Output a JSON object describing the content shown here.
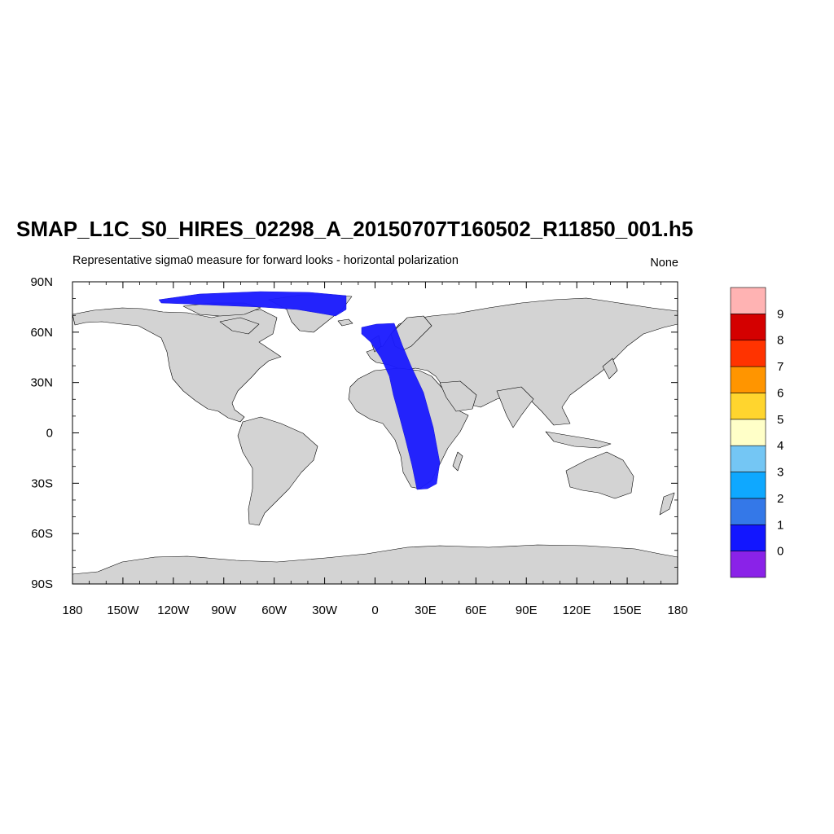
{
  "title": "SMAP_L1C_S0_HIRES_02298_A_20150707T160502_R11850_001.h5",
  "subtitle_left": "Representative sigma0 measure for forward looks - horizontal polarization",
  "subtitle_right": "None",
  "map": {
    "projection": "cylindrical-equidistant",
    "lon_range": [
      -180,
      180
    ],
    "lat_range": [
      -90,
      90
    ],
    "x_ticks": [
      {
        "value": -180,
        "label": "180"
      },
      {
        "value": -150,
        "label": "150W"
      },
      {
        "value": -120,
        "label": "120W"
      },
      {
        "value": -90,
        "label": "90W"
      },
      {
        "value": -60,
        "label": "60W"
      },
      {
        "value": -30,
        "label": "30W"
      },
      {
        "value": 0,
        "label": "0"
      },
      {
        "value": 30,
        "label": "30E"
      },
      {
        "value": 60,
        "label": "60E"
      },
      {
        "value": 90,
        "label": "90E"
      },
      {
        "value": 120,
        "label": "120E"
      },
      {
        "value": 150,
        "label": "150E"
      },
      {
        "value": 180,
        "label": "180"
      }
    ],
    "y_ticks": [
      {
        "value": 90,
        "label": "90N"
      },
      {
        "value": 60,
        "label": "60N"
      },
      {
        "value": 30,
        "label": "30N"
      },
      {
        "value": 0,
        "label": "0"
      },
      {
        "value": -30,
        "label": "30S"
      },
      {
        "value": -60,
        "label": "60S"
      },
      {
        "value": -90,
        "label": "90S"
      }
    ],
    "land_color": "#d3d3d3",
    "swath_color": "#1a1aff",
    "swath_data_level": 0
  },
  "colorbar": {
    "labels": [
      "0",
      "1",
      "2",
      "3",
      "4",
      "5",
      "6",
      "7",
      "8",
      "9"
    ],
    "colors": [
      "#8a22e8",
      "#1216ff",
      "#3478e8",
      "#0fa8ff",
      "#74c6f4",
      "#ffffc8",
      "#ffd52e",
      "#ff9500",
      "#ff3300",
      "#d40000",
      "#ffb3b3"
    ]
  }
}
